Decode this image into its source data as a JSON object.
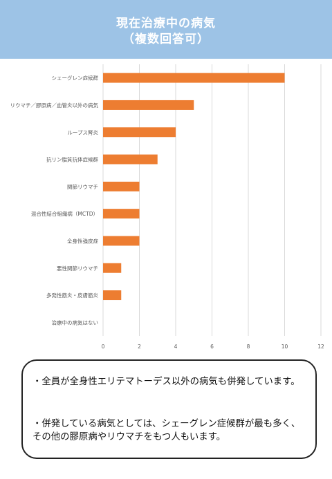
{
  "header": {
    "title_line1": "現在治療中の病気",
    "title_line2": "（複数回答可）"
  },
  "chart_data": {
    "type": "bar",
    "orientation": "horizontal",
    "categories": [
      "シェーグレン症候群",
      "リウマチ／膠原病／血管炎以外の病気",
      "ループス腎炎",
      "抗リン脂質抗体症候群",
      "関節リウマチ",
      "混合性結合組織病（MCTD）",
      "全身性強皮症",
      "悪性関節リウマチ",
      "多発性筋炎・皮膚筋炎",
      "治療中の病気はない"
    ],
    "values": [
      10,
      5,
      4,
      3,
      2,
      2,
      2,
      1,
      1,
      0
    ],
    "xlim": [
      0,
      12
    ],
    "xticks": [
      "0",
      "2",
      "4",
      "6",
      "8",
      "10",
      "12"
    ],
    "grid": true,
    "bar_color": "#ed7d31",
    "grid_color": "#d9d9d9"
  },
  "notes": {
    "line1": "・全員が全身性エリテマトーデス以外の病気も併発しています。",
    "line2": "・併発している病気としては、シェーグレン症候群が最も多く、その他の膠原病やリウマチをもつ人もいます。"
  },
  "colors": {
    "header_bg": "#9dc3e6",
    "header_text": "#ffffff"
  }
}
